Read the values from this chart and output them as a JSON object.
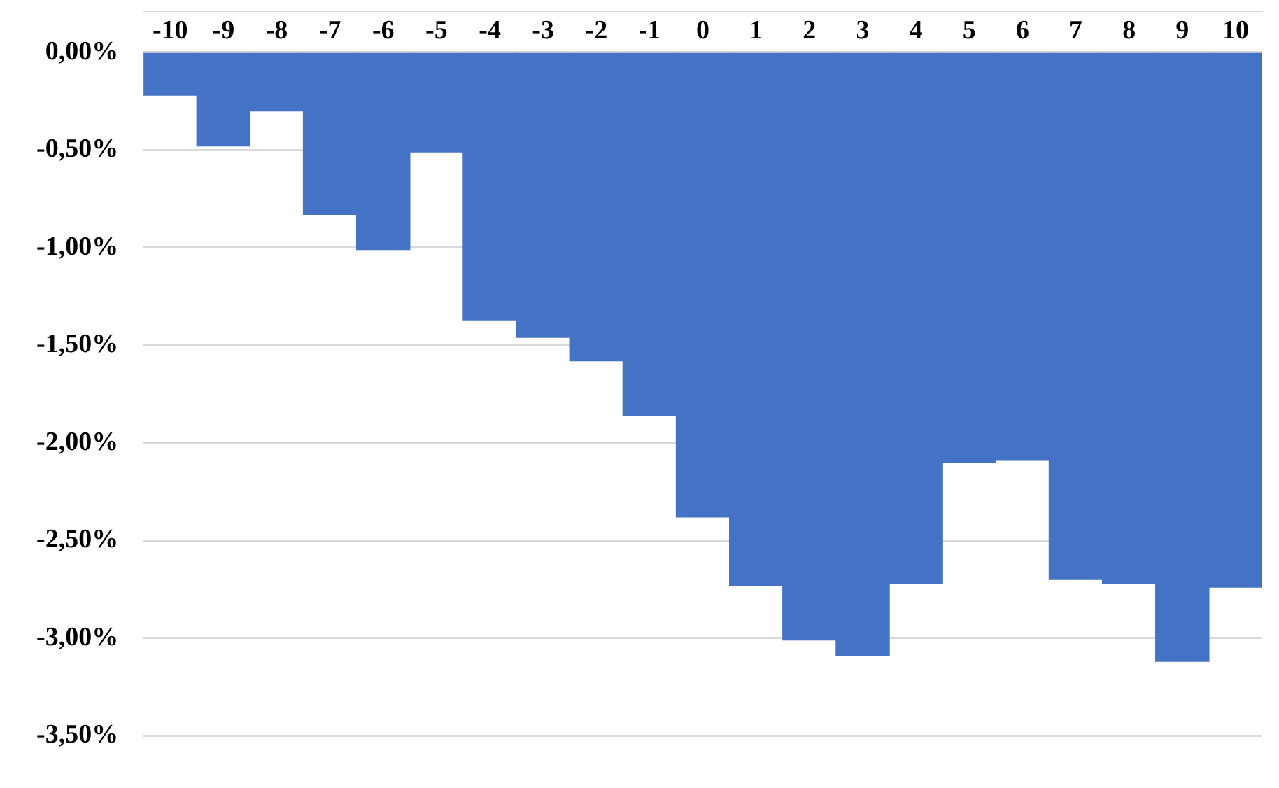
{
  "chart_data": {
    "type": "bar",
    "categories": [
      "-10",
      "-9",
      "-8",
      "-7",
      "-6",
      "-5",
      "-4",
      "-3",
      "-2",
      "-1",
      "0",
      "1",
      "2",
      "3",
      "4",
      "5",
      "6",
      "7",
      "8",
      "9",
      "10"
    ],
    "values": [
      -0.22,
      -0.48,
      -0.3,
      -0.83,
      -1.01,
      -0.51,
      -1.37,
      -1.46,
      -1.58,
      -1.86,
      -2.38,
      -2.73,
      -3.01,
      -3.09,
      -2.72,
      -2.1,
      -2.09,
      -2.7,
      -2.72,
      -3.12,
      -2.74
    ],
    "color": "#4472c4",
    "ylim": [
      -3.5,
      0
    ],
    "yticks": [
      {
        "value": 0,
        "label": "0,00%"
      },
      {
        "value": -0.5,
        "label": "-0,50%"
      },
      {
        "value": -1,
        "label": "-1,00%"
      },
      {
        "value": -1.5,
        "label": "-1,50%"
      },
      {
        "value": -2,
        "label": "-2,00%"
      },
      {
        "value": -2.5,
        "label": "-2,50%"
      },
      {
        "value": -3,
        "label": "-3,00%"
      },
      {
        "value": -3.5,
        "label": "-3,50%"
      }
    ],
    "grid": "y"
  }
}
